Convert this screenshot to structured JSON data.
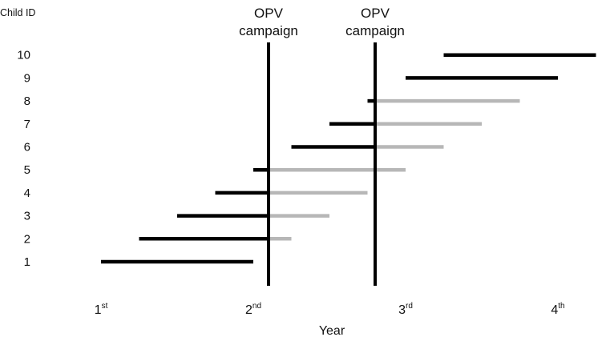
{
  "header": {
    "child_id_label": "Child ID"
  },
  "campaign": {
    "line1": "OPV",
    "line2": "campaign"
  },
  "axis": {
    "xlabel": "Year",
    "ticks": [
      {
        "main": "1",
        "sup": "st"
      },
      {
        "main": "2",
        "sup": "nd"
      },
      {
        "main": "3",
        "sup": "rd"
      },
      {
        "main": "4",
        "sup": "th"
      }
    ]
  },
  "colors": {
    "before": "#000000",
    "after": "#b7b7b7"
  },
  "chart_data": {
    "type": "timeline",
    "xlabel": "Year",
    "ylabel": "Child ID",
    "x_ticks": [
      "1st",
      "2nd",
      "3rd",
      "4th"
    ],
    "xlim": [
      1,
      4.1
    ],
    "campaigns": [
      2.1,
      2.8
    ],
    "children": [
      {
        "id": 1,
        "start": 1.0,
        "end": 2.0
      },
      {
        "id": 2,
        "start": 1.25,
        "end": 2.25
      },
      {
        "id": 3,
        "start": 1.5,
        "end": 2.5
      },
      {
        "id": 4,
        "start": 1.75,
        "end": 2.75
      },
      {
        "id": 5,
        "start": 2.0,
        "end": 3.0
      },
      {
        "id": 6,
        "start": 2.25,
        "end": 3.25
      },
      {
        "id": 7,
        "start": 2.5,
        "end": 3.5
      },
      {
        "id": 8,
        "start": 2.75,
        "end": 3.75
      },
      {
        "id": 9,
        "start": 3.0,
        "end": 4.0
      },
      {
        "id": 10,
        "start": 3.25,
        "end": 4.25
      }
    ]
  }
}
